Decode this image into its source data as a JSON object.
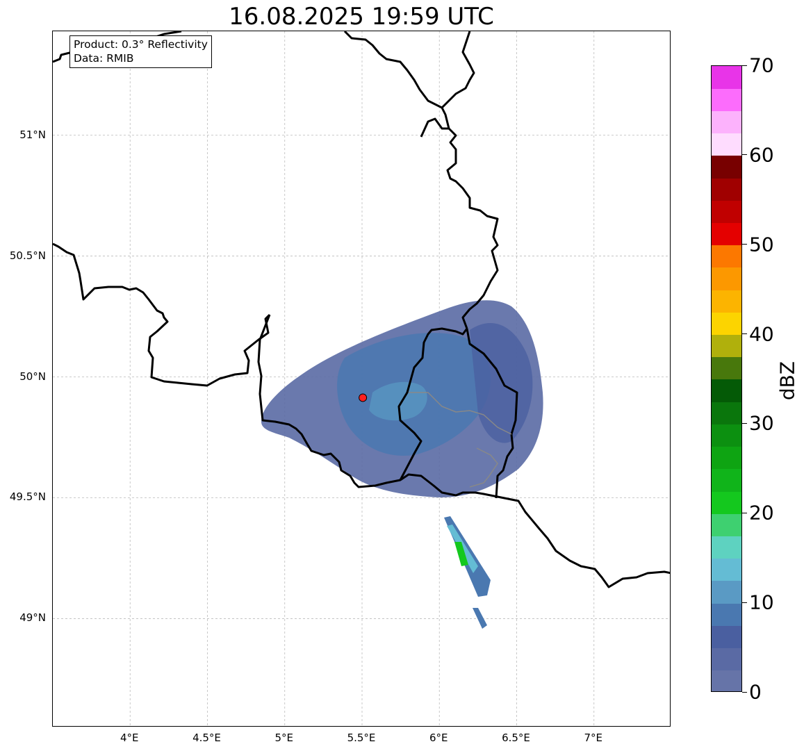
{
  "title": "16.08.2025 19:59 UTC",
  "info": {
    "product": "Product: 0.3° Reflectivity",
    "data": "Data: RMIB"
  },
  "map": {
    "lon_range": [
      3.5,
      7.5
    ],
    "lat_range": [
      48.55,
      51.43
    ],
    "lat_ticks": [
      {
        "value": 51.0,
        "label": "51°N"
      },
      {
        "value": 50.5,
        "label": "50.5°N"
      },
      {
        "value": 50.0,
        "label": "50°N"
      },
      {
        "value": 49.5,
        "label": "49.5°N"
      },
      {
        "value": 49.0,
        "label": "49°N"
      }
    ],
    "lon_ticks": [
      {
        "value": 4.0,
        "label": "4°E"
      },
      {
        "value": 4.5,
        "label": "4.5°E"
      },
      {
        "value": 5.0,
        "label": "5°E"
      },
      {
        "value": 5.5,
        "label": "5.5°E"
      },
      {
        "value": 6.0,
        "label": "6°E"
      },
      {
        "value": 6.5,
        "label": "6.5°E"
      },
      {
        "value": 7.0,
        "label": "7°E"
      }
    ],
    "gridlines": true,
    "radar_site": {
      "lon": 5.505,
      "lat": 49.914,
      "color": "#ff2020"
    }
  },
  "colorbar": {
    "unit": "dBZ",
    "min": 0,
    "max": 70,
    "step": 2.5,
    "ticks": [
      {
        "value": 70,
        "label": "70"
      },
      {
        "value": 60,
        "label": "60"
      },
      {
        "value": 50,
        "label": "50"
      },
      {
        "value": 40,
        "label": "40"
      },
      {
        "value": 30,
        "label": "30"
      },
      {
        "value": 20,
        "label": "20"
      },
      {
        "value": 10,
        "label": "10"
      },
      {
        "value": 0,
        "label": "0"
      }
    ],
    "colors": [
      "#6674a8",
      "#5a6aa4",
      "#4a5fa0",
      "#4a78b0",
      "#5a9ac4",
      "#64bcd4",
      "#5ed2c0",
      "#3ed070",
      "#14c81e",
      "#10b41a",
      "#0ea412",
      "#0c9010",
      "#0a760c",
      "#045a06",
      "#48780c",
      "#b0b00c",
      "#fcd400",
      "#fcb400",
      "#fc9800",
      "#fc7800",
      "#e40000",
      "#c00000",
      "#a00000",
      "#780000",
      "#fedcfe",
      "#fcb2fc",
      "#fc6cfc",
      "#e834e8"
    ]
  }
}
